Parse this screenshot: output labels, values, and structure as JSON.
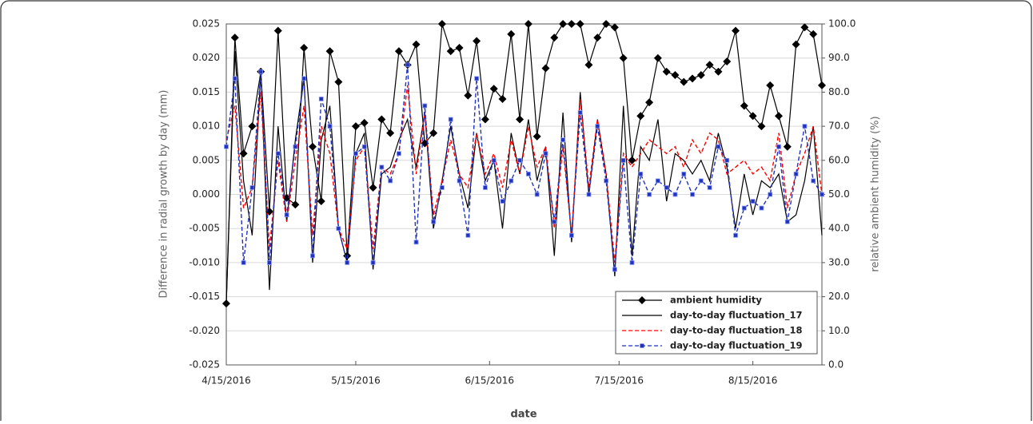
{
  "chart_data": {
    "type": "line",
    "xlabel": "date",
    "ylabel": "Difference in radial growth by day (mm)",
    "y2label": "relative ambient humidity (%)",
    "x": [
      "2016-04-15",
      "2016-04-17",
      "2016-04-19",
      "2016-04-21",
      "2016-04-23",
      "2016-04-25",
      "2016-04-27",
      "2016-04-29",
      "2016-05-01",
      "2016-05-03",
      "2016-05-05",
      "2016-05-07",
      "2016-05-09",
      "2016-05-11",
      "2016-05-13",
      "2016-05-15",
      "2016-05-17",
      "2016-05-19",
      "2016-05-21",
      "2016-05-23",
      "2016-05-25",
      "2016-05-27",
      "2016-05-29",
      "2016-05-31",
      "2016-06-02",
      "2016-06-04",
      "2016-06-06",
      "2016-06-08",
      "2016-06-10",
      "2016-06-12",
      "2016-06-14",
      "2016-06-16",
      "2016-06-18",
      "2016-06-20",
      "2016-06-22",
      "2016-06-24",
      "2016-06-26",
      "2016-06-28",
      "2016-06-30",
      "2016-07-02",
      "2016-07-04",
      "2016-07-06",
      "2016-07-08",
      "2016-07-10",
      "2016-07-12",
      "2016-07-14",
      "2016-07-16",
      "2016-07-18",
      "2016-07-20",
      "2016-07-22",
      "2016-07-24",
      "2016-07-26",
      "2016-07-28",
      "2016-07-30",
      "2016-08-01",
      "2016-08-03",
      "2016-08-05",
      "2016-08-07",
      "2016-08-09",
      "2016-08-11",
      "2016-08-13",
      "2016-08-15",
      "2016-08-17",
      "2016-08-19",
      "2016-08-21",
      "2016-08-23",
      "2016-08-25",
      "2016-08-27",
      "2016-08-29",
      "2016-08-31"
    ],
    "xlim": [
      "2016-04-15",
      "2016-08-31"
    ],
    "xticks": [
      {
        "value": "2016-04-15",
        "label": "4/15/2016"
      },
      {
        "value": "2016-05-15",
        "label": "5/15/2016"
      },
      {
        "value": "2016-06-15",
        "label": "6/15/2016"
      },
      {
        "value": "2016-07-15",
        "label": "7/15/2016"
      },
      {
        "value": "2016-08-15",
        "label": "8/15/2016"
      }
    ],
    "ylim": [
      -0.025,
      0.025
    ],
    "yticks": [
      {
        "value": -0.025,
        "label": "-0.025"
      },
      {
        "value": -0.02,
        "label": "-0.020"
      },
      {
        "value": -0.015,
        "label": "-0.015"
      },
      {
        "value": -0.01,
        "label": "-0.010"
      },
      {
        "value": -0.005,
        "label": "-0.005"
      },
      {
        "value": 0,
        "label": "0.000"
      },
      {
        "value": 0.005,
        "label": "0.005"
      },
      {
        "value": 0.01,
        "label": "0.010"
      },
      {
        "value": 0.015,
        "label": "0.015"
      },
      {
        "value": 0.02,
        "label": "0.020"
      },
      0.025
    ],
    "y2lim": [
      0,
      100
    ],
    "y2ticks": [
      {
        "value": 0,
        "label": "0.0"
      },
      {
        "value": 10,
        "label": "10.0"
      },
      {
        "value": 20,
        "label": "20.0"
      },
      {
        "value": 30,
        "label": "30.0"
      },
      {
        "value": 40,
        "label": "40.0"
      },
      {
        "value": 50,
        "label": "50.0"
      },
      {
        "value": 60,
        "label": "60.0"
      },
      {
        "value": 70,
        "label": "70.0"
      },
      {
        "value": 80,
        "label": "80.0"
      },
      {
        "value": 90,
        "label": "90.0"
      },
      {
        "value": 100,
        "label": "100.0"
      }
    ],
    "grid": true,
    "legend": "lower-right",
    "series": [
      {
        "name": "ambient humidity",
        "color": "#000000",
        "axis": "y2",
        "marker": "diamond",
        "dash": "solid",
        "values": [
          18,
          96,
          62,
          70,
          86,
          45,
          98,
          49,
          47,
          93,
          64,
          48,
          92,
          83,
          32,
          70,
          71,
          52,
          72,
          68,
          92,
          88,
          94,
          65,
          68,
          100,
          92,
          93,
          79,
          95,
          72,
          81,
          78,
          97,
          72,
          100,
          67,
          87,
          96,
          100,
          100,
          100,
          88,
          96,
          100,
          99,
          90,
          60,
          73,
          77,
          90,
          86,
          85,
          83,
          84,
          85,
          88,
          86,
          89,
          98,
          76,
          73,
          70,
          82,
          73,
          64,
          94,
          99,
          97,
          82
        ]
      },
      {
        "name": "day-to-day fluctuation_17",
        "color": "#000000",
        "marker": "none",
        "dash": "solid",
        "values": [
          -0.016,
          0.021,
          0.002,
          -0.006,
          0.018,
          -0.014,
          0.01,
          -0.004,
          0.008,
          0.017,
          -0.01,
          0.008,
          0.013,
          -0.005,
          -0.01,
          0.006,
          0.009,
          -0.011,
          0.003,
          0.004,
          0.008,
          0.011,
          0.004,
          0.012,
          -0.005,
          0.002,
          0.01,
          0.003,
          -0.002,
          0.009,
          0.002,
          0.005,
          -0.005,
          0.009,
          0.003,
          0.011,
          0.002,
          0.007,
          -0.009,
          0.012,
          -0.007,
          0.015,
          0.0,
          0.011,
          0.003,
          -0.012,
          0.013,
          -0.009,
          0.007,
          0.005,
          0.011,
          -0.001,
          0.006,
          0.005,
          0.003,
          0.005,
          0.002,
          0.009,
          0.004,
          -0.005,
          0.003,
          -0.003,
          0.002,
          0.001,
          0.003,
          -0.004,
          -0.003,
          0.002,
          0.01,
          -0.006
        ]
      },
      {
        "name": "day-to-day fluctuation_18",
        "color": "#ff0000",
        "marker": "none",
        "dash": "dashed",
        "values": [
          0.008,
          0.013,
          -0.002,
          0.001,
          0.015,
          -0.008,
          0.005,
          -0.004,
          0.005,
          0.013,
          -0.006,
          0.01,
          0.006,
          -0.005,
          -0.008,
          0.005,
          0.007,
          -0.008,
          0.004,
          0.003,
          0.006,
          0.016,
          0.003,
          0.012,
          -0.003,
          0.002,
          0.008,
          0.003,
          0.001,
          0.009,
          0.003,
          0.006,
          0.001,
          0.008,
          0.003,
          0.01,
          0.004,
          0.007,
          -0.005,
          0.007,
          -0.006,
          0.014,
          0.001,
          0.011,
          0.003,
          -0.01,
          0.006,
          0.004,
          0.006,
          0.008,
          0.007,
          0.006,
          0.007,
          0.004,
          0.008,
          0.006,
          0.009,
          0.008,
          0.003,
          0.004,
          0.005,
          0.003,
          0.004,
          0.002,
          0.009,
          -0.002,
          0.003,
          0.006,
          0.01,
          0.0
        ]
      },
      {
        "name": "day-to-day fluctuation_19",
        "color": "#2233bb",
        "marker": "square",
        "dash": "dashed",
        "values": [
          0.007,
          0.017,
          -0.01,
          0.001,
          0.018,
          -0.01,
          0.006,
          -0.003,
          0.007,
          0.017,
          -0.009,
          0.014,
          0.01,
          -0.005,
          -0.01,
          0.006,
          0.007,
          -0.01,
          0.004,
          0.002,
          0.006,
          0.019,
          -0.007,
          0.013,
          -0.004,
          0.001,
          0.011,
          0.002,
          -0.006,
          0.017,
          0.001,
          0.005,
          -0.001,
          0.002,
          0.005,
          0.003,
          0.0,
          0.006,
          -0.004,
          0.008,
          -0.006,
          0.012,
          0.0,
          0.01,
          0.002,
          -0.011,
          0.005,
          -0.01,
          0.003,
          0.0,
          0.002,
          0.001,
          0.0,
          0.003,
          0.0,
          0.002,
          0.001,
          0.007,
          0.005,
          -0.006,
          -0.002,
          -0.001,
          -0.002,
          0.0,
          0.007,
          -0.004,
          0.003,
          0.01,
          0.002,
          0.0
        ]
      }
    ]
  }
}
